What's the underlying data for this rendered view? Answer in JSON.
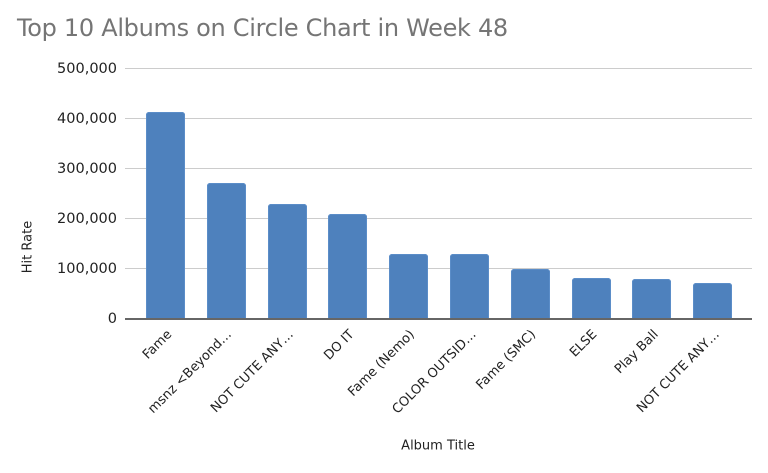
{
  "chart_data": {
    "type": "bar",
    "title": "Top 10 Albums on Circle Chart in Week 48",
    "xlabel": "Album Title",
    "ylabel": "Hit Rate",
    "ylim": [
      0,
      500000
    ],
    "yticks": [
      0,
      100000,
      200000,
      300000,
      400000,
      500000
    ],
    "ytick_labels": [
      "0",
      "100,000",
      "200,000",
      "300,000",
      "400,000",
      "500,000"
    ],
    "grid": true,
    "legend": null,
    "bar_color": "#4e81bd",
    "categories": [
      "Fame",
      "msnz <Beyond…",
      "NOT CUTE ANY…",
      "DO IT",
      "Fame (Nemo)",
      "COLOR OUTSID…",
      "Fame (SMC)",
      "ELSE",
      "Play Ball",
      "NOT CUTE ANY…"
    ],
    "values": [
      414000,
      272000,
      230000,
      209000,
      130000,
      129000,
      100000,
      82000,
      80000,
      71000
    ]
  }
}
